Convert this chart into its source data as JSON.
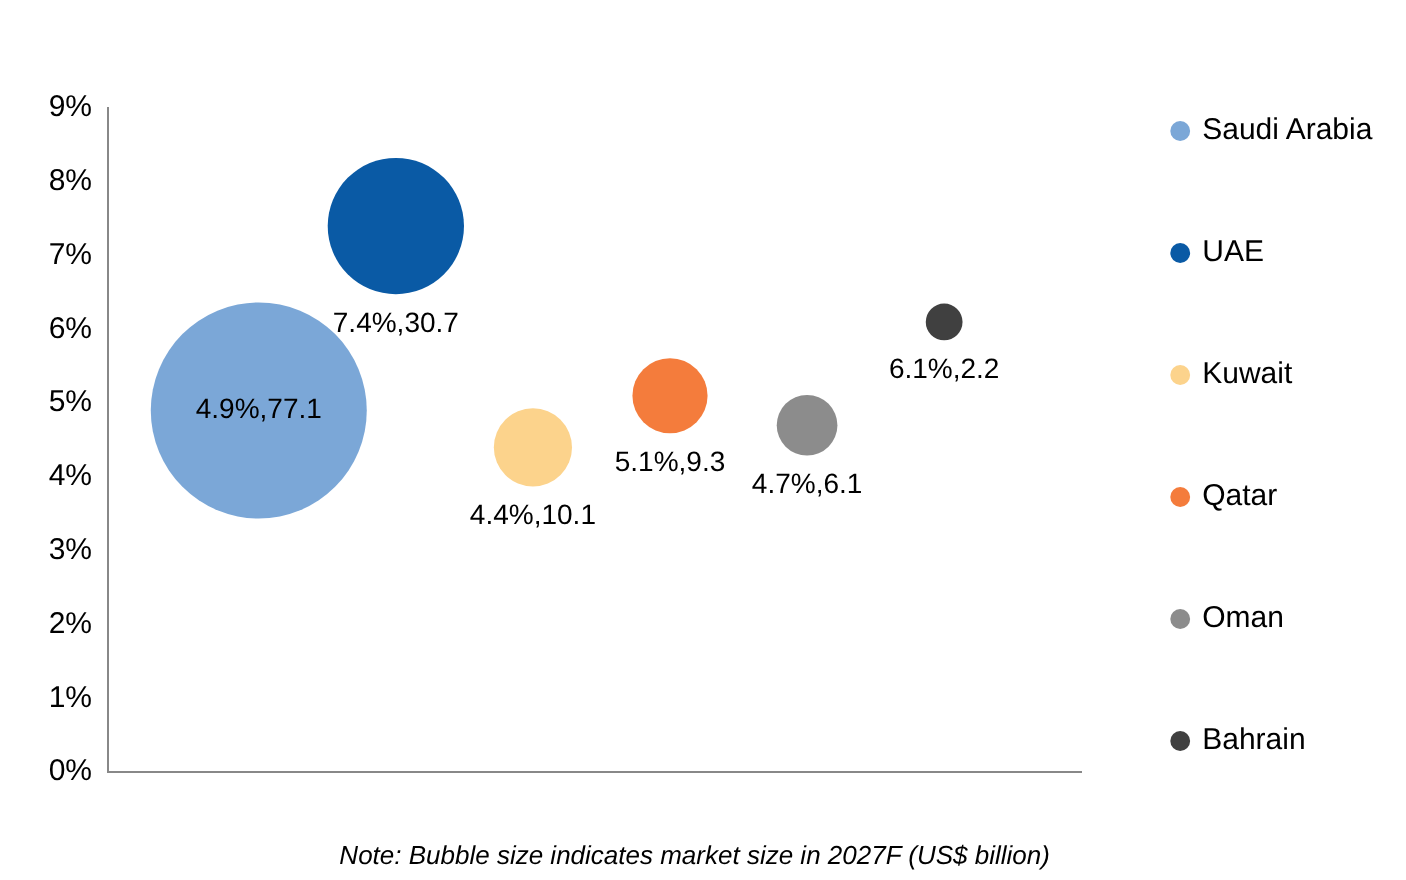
{
  "chart_data": {
    "type": "bubble",
    "categories": [
      null,
      null,
      null,
      null,
      null,
      null
    ],
    "series": [
      {
        "name": "Saudi Arabia",
        "color": "#7ba7d7",
        "values": [
          4.9,
          null,
          null,
          null,
          null,
          null
        ],
        "sizes": [
          1,
          null,
          null,
          null,
          null,
          null
        ],
        "value_labels": [
          "4.9%,77.1",
          null,
          null,
          null,
          null,
          null
        ]
      },
      {
        "name": "UAE",
        "color": "#0a5aa5",
        "values": [
          null,
          7.4,
          null,
          null,
          null,
          null
        ],
        "sizes": [
          null,
          0.398,
          null,
          null,
          null,
          null
        ],
        "value_labels": [
          null,
          "7.4%,30.7",
          null,
          null,
          null,
          null
        ]
      },
      {
        "name": "Kuwait",
        "color": "#fcd38c",
        "values": [
          null,
          null,
          4.4,
          null,
          null,
          null
        ],
        "sizes": [
          null,
          null,
          0.131,
          null,
          null,
          null
        ],
        "value_labels": [
          null,
          null,
          "4.4%,10.1",
          null,
          null,
          null
        ]
      },
      {
        "name": "Qatar",
        "color": "#f47c3c",
        "values": [
          null,
          null,
          null,
          5.1,
          null,
          null
        ],
        "sizes": [
          null,
          null,
          null,
          0.121,
          null,
          null
        ],
        "value_labels": [
          null,
          null,
          null,
          "5.1%,9.3",
          null,
          null
        ]
      },
      {
        "name": "Oman",
        "color": "#8c8c8c",
        "values": [
          null,
          null,
          null,
          null,
          4.7,
          null
        ],
        "sizes": [
          null,
          null,
          null,
          null,
          0.079,
          null
        ],
        "value_labels": [
          null,
          null,
          null,
          null,
          "4.7%,6.1",
          null
        ]
      },
      {
        "name": "Bahrain",
        "color": "#404040",
        "values": [
          null,
          null,
          null,
          null,
          null,
          6.1
        ],
        "sizes": [
          null,
          null,
          null,
          null,
          null,
          0.029
        ],
        "value_labels": [
          null,
          null,
          null,
          null,
          null,
          "6.1%,2.2"
        ]
      }
    ],
    "ylim": [
      0,
      9
    ],
    "yticks": [
      {
        "value": 0,
        "label": "0%"
      },
      {
        "value": 1,
        "label": "1%"
      },
      {
        "value": 2,
        "label": "2%"
      },
      {
        "value": 3,
        "label": "3%"
      },
      {
        "value": 4,
        "label": "4%"
      },
      {
        "value": 5,
        "label": "5%"
      },
      {
        "value": 6,
        "label": "6%"
      },
      {
        "value": 7,
        "label": "7%"
      },
      {
        "value": 8,
        "label": "8%"
      },
      {
        "value": 9,
        "label": "9%"
      }
    ],
    "tick_labels": "y",
    "grid": false,
    "legend": "right",
    "annotations": [
      "Note: Bubble size indicates market size in 2027F (US$ billion)"
    ]
  }
}
